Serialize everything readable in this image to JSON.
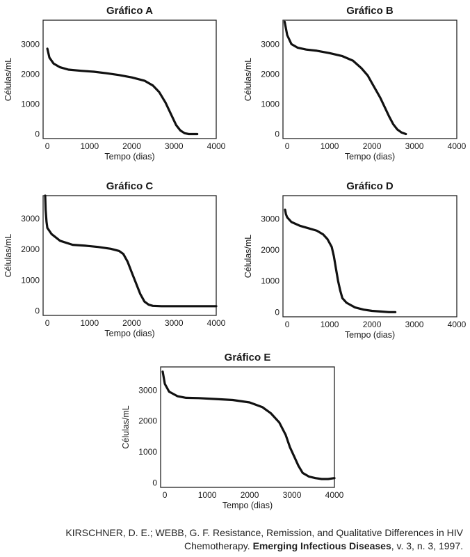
{
  "chart_data": [
    {
      "type": "line",
      "title": "Gráfico A",
      "xlabel": "Tempo (dias)",
      "ylabel": "Células/mL",
      "xticks": [
        "0",
        "1000",
        "2000",
        "3000",
        "4000"
      ],
      "yticks": [
        "0",
        "1000",
        "2000",
        "3000"
      ],
      "xlim": [
        -100,
        4000
      ],
      "ylim": [
        -150,
        3800
      ],
      "series": [
        {
          "x": [
            0,
            50,
            150,
            300,
            500,
            800,
            1100,
            1400,
            1700,
            2000,
            2300,
            2500,
            2650,
            2800,
            2950,
            3050,
            3150,
            3250,
            3350,
            3450,
            3550
          ],
          "y": [
            2850,
            2550,
            2350,
            2230,
            2150,
            2110,
            2080,
            2030,
            1970,
            1890,
            1780,
            1620,
            1400,
            1050,
            600,
            300,
            120,
            30,
            0,
            0,
            0
          ]
        }
      ]
    },
    {
      "type": "line",
      "title": "Gráfico B",
      "xlabel": "Tempo (dias)",
      "ylabel": "Células/mL",
      "xticks": [
        "0",
        "1000",
        "2000",
        "3000",
        "4000"
      ],
      "yticks": [
        "0",
        "1000",
        "2000",
        "3000"
      ],
      "xlim": [
        -100,
        4000
      ],
      "ylim": [
        -150,
        3800
      ],
      "series": [
        {
          "x": [
            -60,
            0,
            100,
            250,
            450,
            700,
            1000,
            1300,
            1550,
            1750,
            1900,
            2000,
            2100,
            2200,
            2300,
            2400,
            2500,
            2600,
            2700,
            2800
          ],
          "y": [
            3750,
            3300,
            3000,
            2880,
            2820,
            2780,
            2700,
            2600,
            2450,
            2200,
            1950,
            1700,
            1450,
            1200,
            900,
            600,
            330,
            150,
            50,
            0
          ]
        }
      ]
    },
    {
      "type": "line",
      "title": "Gráfico C",
      "xlabel": "Tempo (dias)",
      "ylabel": "Células/mL",
      "xticks": [
        "0",
        "1000",
        "2000",
        "3000",
        "4000"
      ],
      "yticks": [
        "0",
        "1000",
        "2000",
        "3000"
      ],
      "xlim": [
        -100,
        4000
      ],
      "ylim": [
        -150,
        3750
      ],
      "series": [
        {
          "x": [
            -50,
            -40,
            -20,
            0,
            100,
            300,
            600,
            900,
            1200,
            1500,
            1700,
            1800,
            1900,
            2000,
            2100,
            2200,
            2300,
            2400,
            2500,
            2700,
            3000,
            3500,
            4000
          ],
          "y": [
            3750,
            3300,
            2900,
            2700,
            2500,
            2280,
            2150,
            2120,
            2080,
            2020,
            1950,
            1850,
            1600,
            1250,
            900,
            550,
            300,
            200,
            160,
            150,
            150,
            150,
            150
          ]
        }
      ]
    },
    {
      "type": "line",
      "title": "Gráfico D",
      "xlabel": "Tempo (dias)",
      "ylabel": "Células/mL",
      "xticks": [
        "0",
        "1000",
        "2000",
        "3000",
        "4000"
      ],
      "yticks": [
        "0",
        "1000",
        "2000",
        "3000"
      ],
      "xlim": [
        -100,
        4000
      ],
      "ylim": [
        -150,
        3750
      ],
      "series": [
        {
          "x": [
            -50,
            -30,
            0,
            100,
            300,
            500,
            700,
            850,
            950,
            1050,
            1100,
            1150,
            1200,
            1250,
            1300,
            1400,
            1600,
            1800,
            2000,
            2200,
            2400,
            2550
          ],
          "y": [
            3300,
            3150,
            3050,
            2900,
            2780,
            2700,
            2620,
            2500,
            2350,
            2100,
            1800,
            1400,
            1000,
            700,
            450,
            300,
            150,
            80,
            40,
            20,
            0,
            0
          ]
        }
      ]
    },
    {
      "type": "line",
      "title": "Gráfico E",
      "xlabel": "Tempo (dias)",
      "ylabel": "Células/mL",
      "xticks": [
        "0",
        "1000",
        "2000",
        "3000",
        "4000"
      ],
      "yticks": [
        "0",
        "1000",
        "2000",
        "3000"
      ],
      "xlim": [
        -100,
        4000
      ],
      "ylim": [
        -150,
        3750
      ],
      "series": [
        {
          "x": [
            -50,
            0,
            100,
            300,
            500,
            800,
            1200,
            1600,
            2000,
            2300,
            2500,
            2700,
            2850,
            2950,
            3050,
            3150,
            3250,
            3400,
            3550,
            3700,
            3850,
            4000
          ],
          "y": [
            3600,
            3200,
            2950,
            2800,
            2750,
            2740,
            2710,
            2680,
            2600,
            2450,
            2250,
            1950,
            1550,
            1150,
            850,
            550,
            320,
            200,
            150,
            120,
            120,
            150
          ]
        }
      ]
    }
  ],
  "citation": {
    "line1": "KIRSCHNER, D. E.; WEBB, G. F. Resistance, Remission, and Qualitative Differences in HIV",
    "line2_pre": "Chemotherapy. ",
    "line2_bold": "Emerging Infectious Diseases",
    "line2_post": ", v. 3, n. 3, 1997."
  }
}
